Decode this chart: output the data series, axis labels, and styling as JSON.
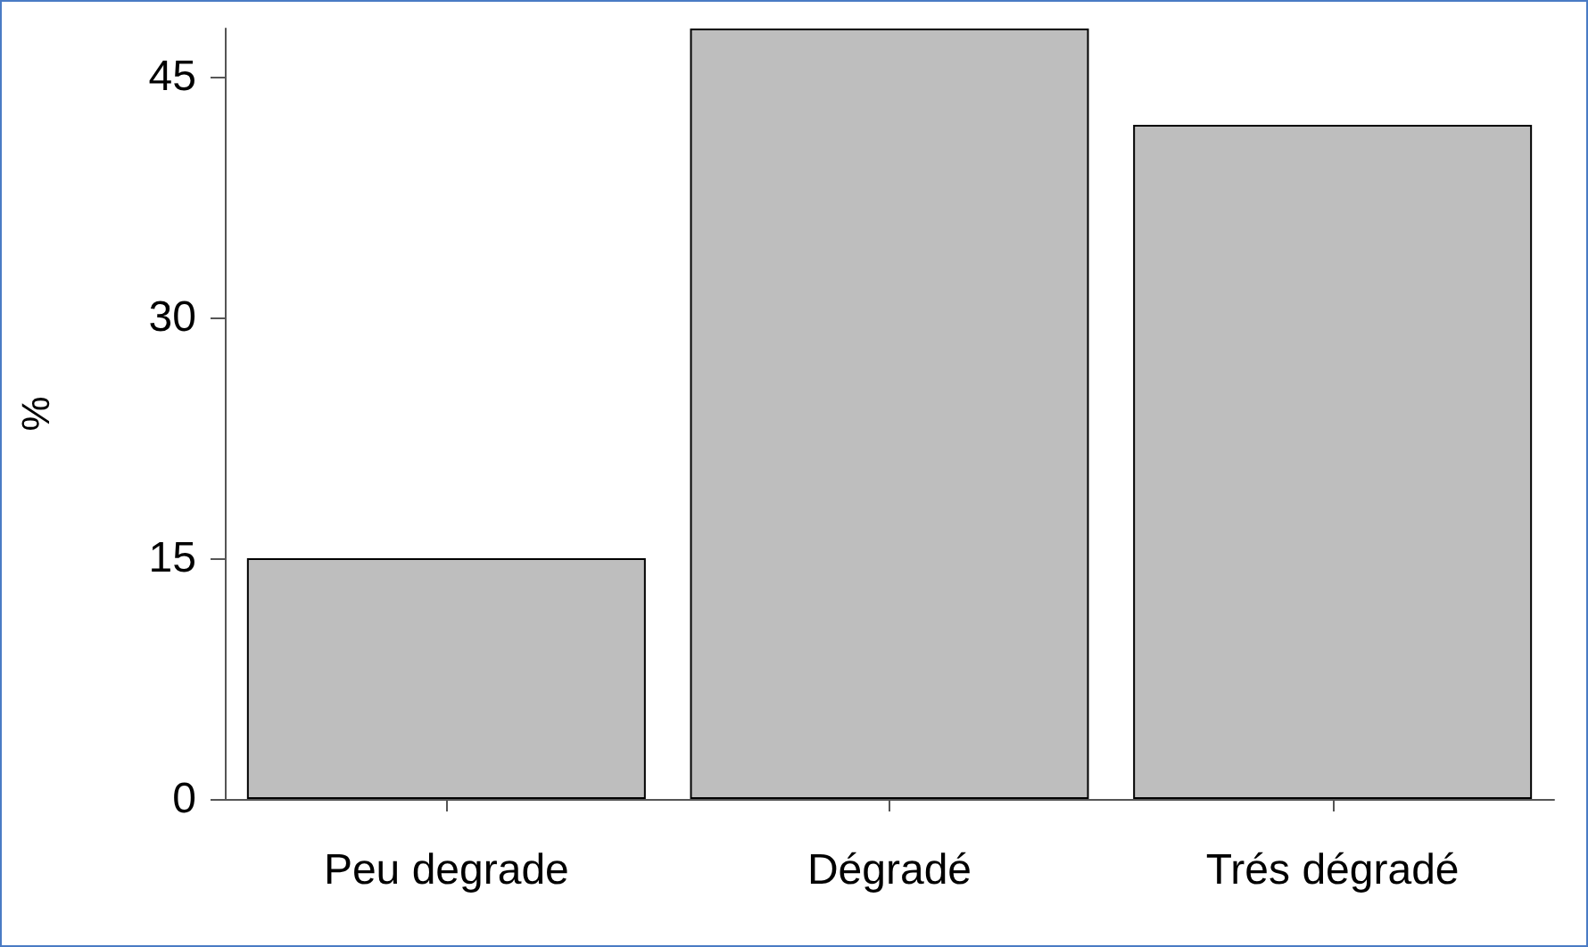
{
  "chart_data": {
    "type": "bar",
    "ylabel": "%",
    "categories": [
      "Peu degrade",
      "Dégradé",
      "Trés dégradé"
    ],
    "values": [
      15,
      48,
      42
    ],
    "color": "#bebebe",
    "ylim": [
      0,
      48
    ],
    "yticks": [
      0,
      15,
      30,
      45
    ],
    "grid": false
  }
}
